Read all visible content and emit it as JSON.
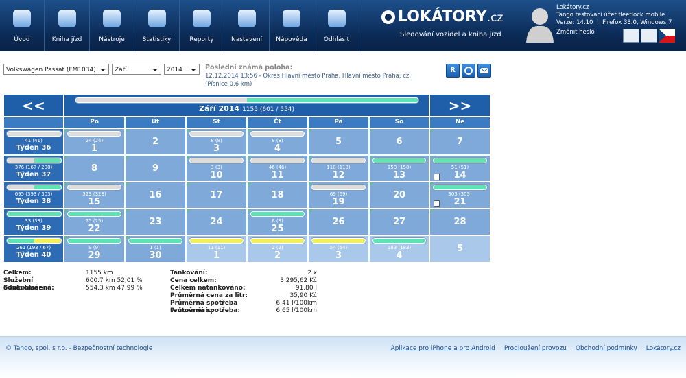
{
  "nav": {
    "items": [
      "Úvod",
      "Kniha jízd",
      "Nástroje",
      "Statistiky",
      "Reporty",
      "Nastavení",
      "Nápověda",
      "Odhlásit"
    ],
    "logo": "LOKÁTORY",
    "logo_suffix": ".cz",
    "tagline": "Sledování vozidel a kniha jízd"
  },
  "user": {
    "company": "Lokátory.cz",
    "account": "Tango testovací účet fleetlock mobile",
    "version": "Verze: 14.10  |  Firefox 33.0, Windows 7",
    "change_password": "Změnit heslo"
  },
  "filters": {
    "vehicle": "Volkswagen Passat (FM1034)",
    "month": "Září",
    "year": "2014"
  },
  "position": {
    "label": "Poslední známá poloha:",
    "text": "12.12.2014 13:56 - Okres Hlavní město Praha, Hlavní město Praha, cz,",
    "detail": "(Písnice 0.6 km)"
  },
  "buttons": {
    "report": "R"
  },
  "calendar": {
    "prev": "<<",
    "next": ">>",
    "month": "Září 2014",
    "total": "1155 (601 / 554)",
    "bar": [
      "#dcdcdc",
      "#5fe3b5"
    ],
    "weekdays": [
      "Po",
      "Út",
      "St",
      "Čt",
      "Pá",
      "So",
      "Ne"
    ],
    "weeks": [
      {
        "label": "Týden 36",
        "km": "41 (41)",
        "bar": [
          "#dcdcdc"
        ],
        "days": [
          {
            "day": "1",
            "km": "24 (24)",
            "bar": "#dcdcdc"
          },
          {
            "day": "2"
          },
          {
            "day": "3",
            "km": "8 (8)",
            "bar": "#dcdcdc"
          },
          {
            "day": "4",
            "km": "8 (8)",
            "bar": "#dcdcdc"
          },
          {
            "day": "5"
          },
          {
            "day": "6"
          },
          {
            "day": "7"
          }
        ]
      },
      {
        "label": "Týden 37",
        "km": "376 (167 / 208)",
        "bar": [
          "#dcdcdc",
          "#5fe3b5"
        ],
        "days": [
          {
            "day": "8"
          },
          {
            "day": "9"
          },
          {
            "day": "10",
            "km": "3 (3)",
            "bar": "#dcdcdc"
          },
          {
            "day": "11",
            "km": "46 (46)",
            "bar": "#dcdcdc"
          },
          {
            "day": "12",
            "km": "118 (118)",
            "bar": "#dcdcdc"
          },
          {
            "day": "13",
            "km": "158 (158)",
            "bar": "#5fe3b5"
          },
          {
            "day": "14",
            "km": "51 (51)",
            "bar": "#5fe3b5",
            "fuel": true
          }
        ]
      },
      {
        "label": "Týden 38",
        "km": "695 (393 / 303)",
        "bar": [
          "#dcdcdc",
          "#5fe3b5"
        ],
        "days": [
          {
            "day": "15",
            "km": "323 (323)",
            "bar": "#dcdcdc"
          },
          {
            "day": "16"
          },
          {
            "day": "17"
          },
          {
            "day": "18"
          },
          {
            "day": "19",
            "km": "69 (69)",
            "bar": "#dcdcdc"
          },
          {
            "day": "20"
          },
          {
            "day": "21",
            "km": "303 (303)",
            "bar": "#5fe3b5",
            "fuel": true
          }
        ]
      },
      {
        "label": "Týden 39",
        "km": "33 (33)",
        "bar": [
          "#5fe3b5"
        ],
        "days": [
          {
            "day": "22",
            "km": "25 (25)",
            "bar": "#5fe3b5"
          },
          {
            "day": "23"
          },
          {
            "day": "24"
          },
          {
            "day": "25",
            "km": "8 (8)",
            "bar": "#5fe3b5"
          },
          {
            "day": "26"
          },
          {
            "day": "27"
          },
          {
            "day": "28"
          }
        ]
      },
      {
        "label": "Týden 40",
        "km": "261 (193 / 67)",
        "bar": [
          "#5fe3b5",
          "#f2ef5a"
        ],
        "days": [
          {
            "day": "29",
            "km": "9 (9)",
            "bar": "#5fe3b5"
          },
          {
            "day": "30",
            "km": "1 (1)",
            "bar": "#5fe3b5"
          },
          {
            "day": "1",
            "km": "11 (11)",
            "bar": "#f2ef5a",
            "other_month": true
          },
          {
            "day": "2",
            "km": "2 (2)",
            "bar": "#f2ef5a",
            "other_month": true
          },
          {
            "day": "3",
            "km": "54 (54)",
            "bar": "#f2ef5a",
            "other_month": true
          },
          {
            "day": "4",
            "km": "183 (183)",
            "bar": "#5fe3b5",
            "other_month": true
          },
          {
            "day": "5",
            "other_month": true
          }
        ]
      }
    ]
  },
  "summary": {
    "left": [
      [
        "Celkem:",
        "1155 km"
      ],
      [
        "Služební odsouhlasená:",
        "600.7 km 52,01 %"
      ],
      [
        "Soukromá:",
        "554.3 km 47,99 %"
      ]
    ],
    "right": [
      [
        "Tankování:",
        "2 x"
      ],
      [
        "Cena celkem:",
        "3 295,62 Kč"
      ],
      [
        "Celkem natankováno:",
        "91,80 l"
      ],
      [
        "Průměrná cena za litr:",
        "35,90 Kč"
      ],
      [
        "Průměrná spotřeba tento měsíc:",
        "6,41 l/100km"
      ],
      [
        "Průměrná spotřeba:",
        "6,65 l/100km"
      ]
    ]
  },
  "footer": {
    "copyright": "© Tango, spol. s r.o. - Bezpečnostní technologie",
    "links": [
      "Aplikace pro iPhone a pro Android",
      "Prodloužení provozu",
      "Obchodní podmínky",
      "Lokátory.cz"
    ]
  }
}
